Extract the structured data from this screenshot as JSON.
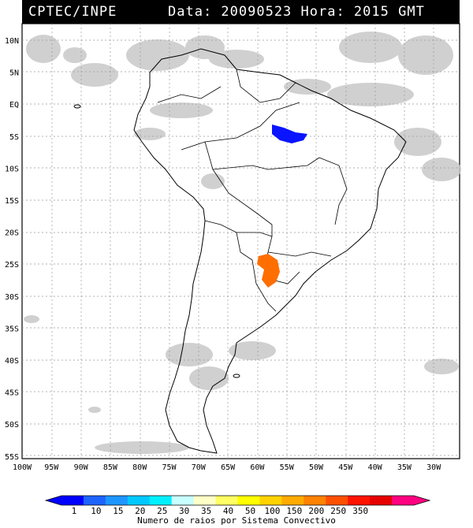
{
  "header": {
    "source": "CPTEC/INPE",
    "datetime": "Data: 20090523 Hora: 2015 GMT"
  },
  "lat_labels": [
    "10N",
    "5N",
    "EQ",
    "5S",
    "10S",
    "15S",
    "20S",
    "25S",
    "30S",
    "35S",
    "40S",
    "45S",
    "50S",
    "55S"
  ],
  "lon_labels": [
    "100W",
    "95W",
    "90W",
    "85W",
    "80W",
    "75W",
    "70W",
    "65W",
    "60W",
    "55W",
    "50W",
    "45W",
    "40W",
    "35W",
    "30W"
  ],
  "colorbar": {
    "labels": [
      "1",
      "10",
      "15",
      "20",
      "25",
      "30",
      "35",
      "40",
      "50",
      "100",
      "150",
      "200",
      "250",
      "350"
    ],
    "colors": [
      "#0000ff",
      "#1e64ff",
      "#1e96ff",
      "#00c8ff",
      "#00f0ff",
      "#c8ffff",
      "#ffffc8",
      "#ffff64",
      "#ffff00",
      "#ffd200",
      "#ffaa00",
      "#ff8200",
      "#ff5000",
      "#ff1400",
      "#e60000",
      "#ff0080"
    ],
    "title": "Numero de raios por Sistema Convectivo"
  },
  "systems": [
    {
      "name": "blue-system",
      "color": "#0a14ff"
    },
    {
      "name": "orange-system",
      "color": "#ff6e00"
    }
  ]
}
